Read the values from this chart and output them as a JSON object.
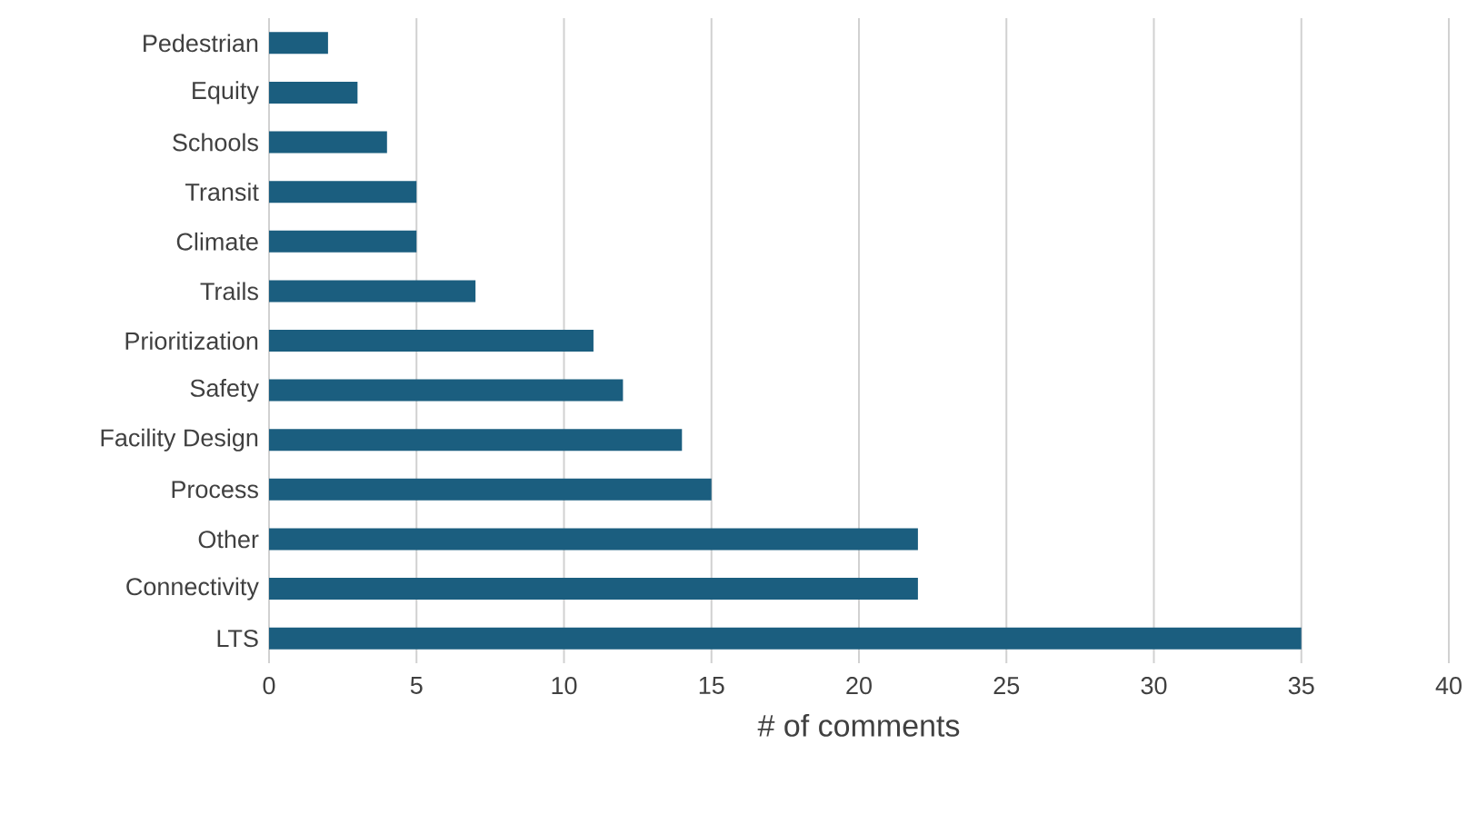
{
  "chart_data": {
    "type": "bar",
    "orientation": "horizontal",
    "xlabel": "# of comments",
    "categories": [
      "Pedestrian",
      "Equity",
      "Schools",
      "Transit",
      "Climate",
      "Trails",
      "Prioritization",
      "Safety",
      "Facility Design",
      "Process",
      "Other",
      "Connectivity",
      "LTS"
    ],
    "values": [
      2,
      3,
      4,
      5,
      5,
      7,
      11,
      12,
      14,
      15,
      22,
      22,
      35
    ],
    "color": "#1b5e7f",
    "xlim": [
      0,
      40
    ],
    "xticks": [
      0,
      5,
      10,
      15,
      20,
      25,
      30,
      35,
      40
    ],
    "grid": "x"
  }
}
